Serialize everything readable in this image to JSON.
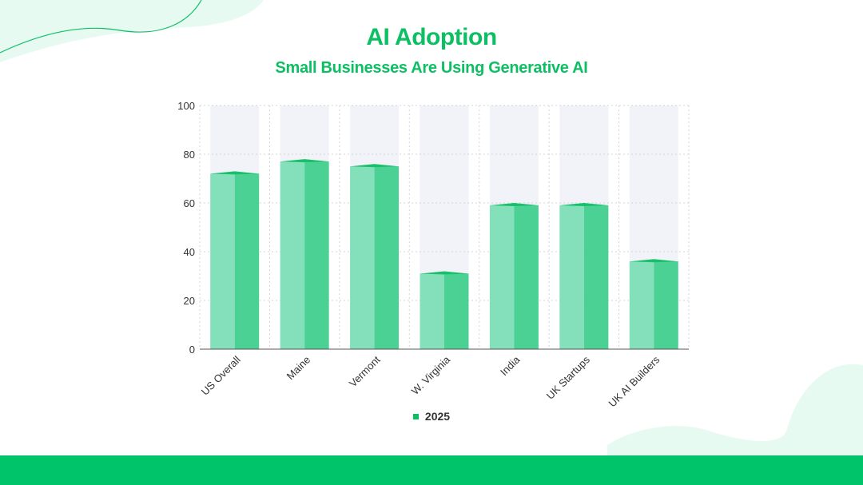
{
  "page": {
    "title": "AI Adoption",
    "subtitle": "Small Businesses Are Using Generative AI"
  },
  "colors": {
    "accent": "#0dbf63",
    "bar_light": "#84e0ba",
    "bar_dark": "#4cd195",
    "bar_top": "#19c06b",
    "band": "#f2f3f8",
    "deco": "#e6faf2",
    "footer": "#00c46a"
  },
  "chart_data": {
    "type": "bar",
    "title": "",
    "xlabel": "",
    "ylabel": "",
    "categories": [
      "US Overall",
      "Maine",
      "Vermont",
      "W. Virginia",
      "India",
      "UK Startups",
      "UK AI Builders"
    ],
    "series": [
      {
        "name": "2025",
        "values": [
          72,
          77,
          75,
          31,
          59,
          59,
          36
        ]
      }
    ],
    "ylim": [
      0,
      100
    ],
    "yticks": [
      0,
      20,
      40,
      60,
      80,
      100
    ],
    "grid": true,
    "legend": "bottom"
  }
}
